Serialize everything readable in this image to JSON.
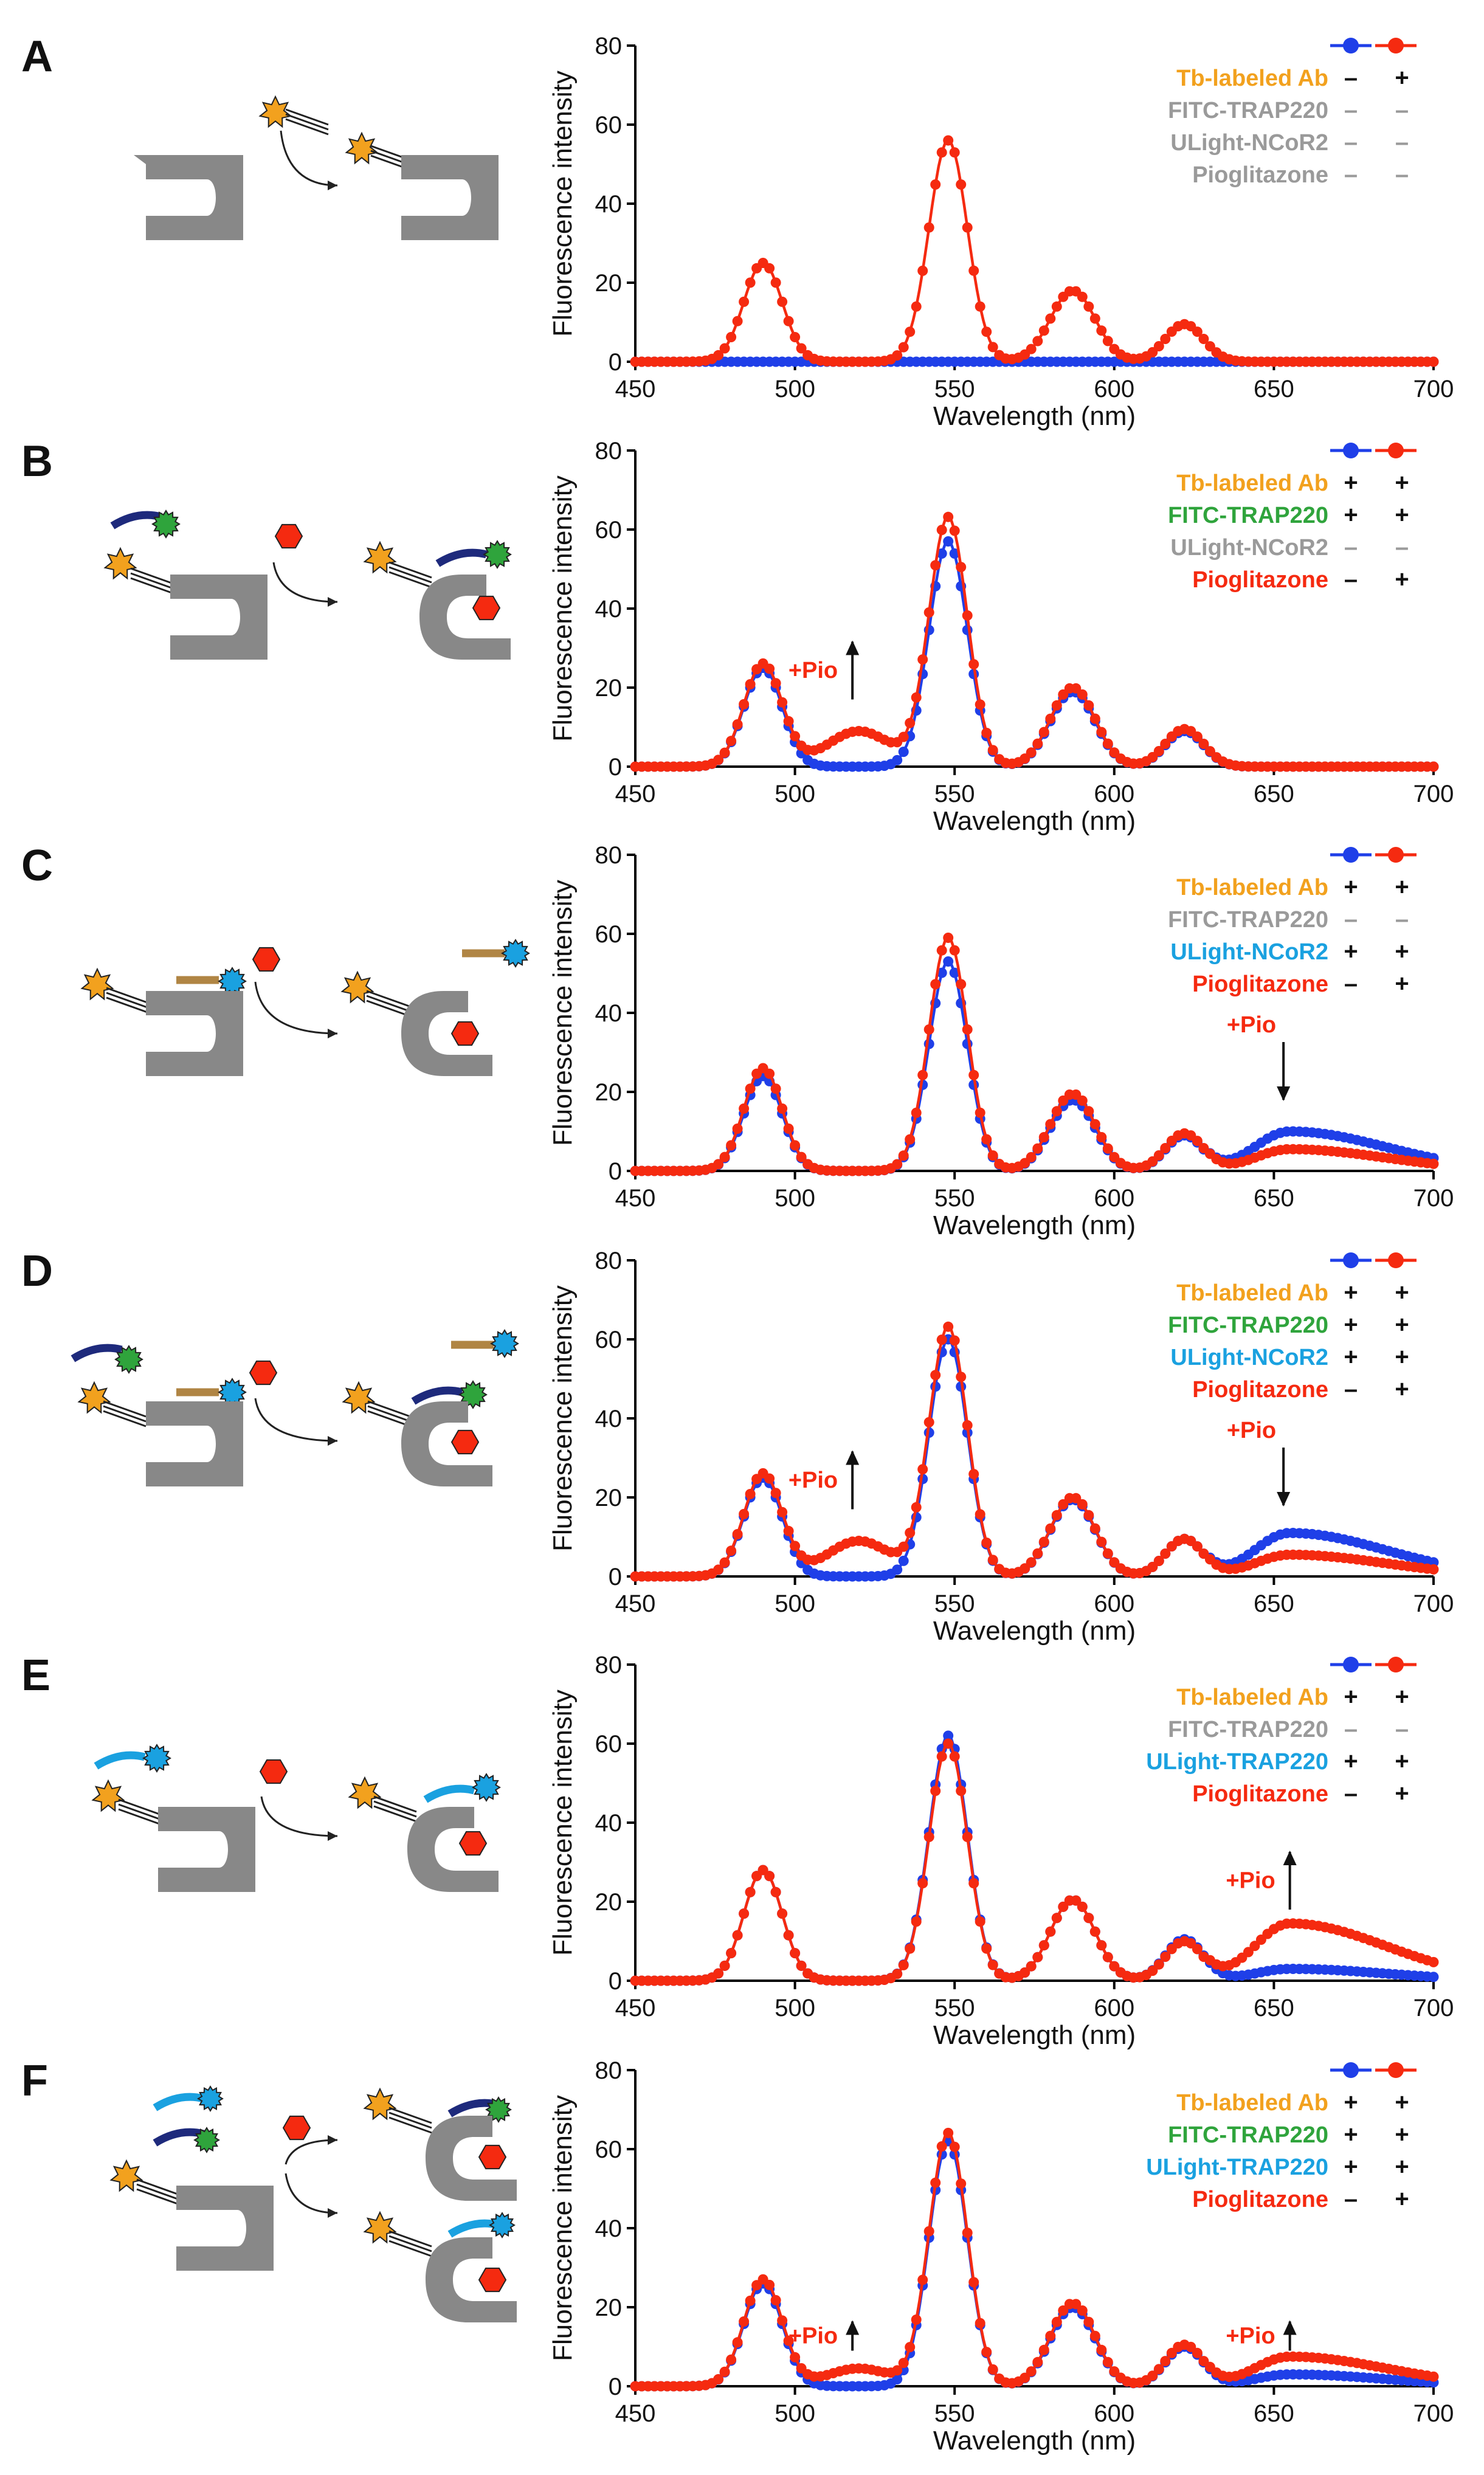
{
  "figure": {
    "xlabel": "Wavelength (nm)",
    "ylabel": "Fluorescence intensity",
    "xticks": [
      "450",
      "500",
      "550",
      "600",
      "650",
      "700"
    ],
    "yticks": [
      "0",
      "20",
      "40",
      "60",
      "80"
    ],
    "row_labels": [
      "Tb-labeled Ab",
      "FITC-TRAP220",
      "ULight-NCoR2",
      "Pioglitazone"
    ],
    "colors": {
      "blue": "#1f3fe8",
      "red": "#f52a10",
      "orange": "#f2a11e",
      "green": "#2fa43c",
      "cyan": "#1aa1e0",
      "gray": "#9a9a9a",
      "receptor": "#888888",
      "navy": "#1e2a7c",
      "tan": "#b08544"
    }
  },
  "chart_data": [
    {
      "panel": "A",
      "type": "line",
      "title": "",
      "xlabel": "Wavelength (nm)",
      "ylabel": "Fluorescence intensity",
      "xlim": [
        450,
        700
      ],
      "ylim": [
        0,
        80
      ],
      "legend": [
        {
          "label": "Tb-labeled Ab",
          "color": "orange",
          "blue": "–",
          "red": "+"
        },
        {
          "label": "FITC-TRAP220",
          "color": "gray",
          "blue": "–",
          "red": "–"
        },
        {
          "label": "ULight-NCoR2",
          "color": "gray",
          "blue": "–",
          "red": "–"
        },
        {
          "label": "Pioglitazone",
          "color": "gray",
          "blue": "–",
          "red": "–"
        }
      ],
      "annotations": [],
      "series": [
        {
          "name": "blue",
          "peaks": [
            [
              490,
              0
            ],
            [
              548,
              0
            ],
            [
              587,
              0
            ],
            [
              622,
              0
            ]
          ],
          "long_tail": 0
        },
        {
          "name": "red",
          "peaks": [
            [
              490,
              25
            ],
            [
              548,
              56
            ],
            [
              587,
              18
            ],
            [
              622,
              9.5
            ]
          ],
          "long_tail": 0
        }
      ]
    },
    {
      "panel": "B",
      "type": "line",
      "title": "",
      "xlabel": "Wavelength (nm)",
      "ylabel": "Fluorescence intensity",
      "xlim": [
        450,
        700
      ],
      "ylim": [
        0,
        80
      ],
      "legend": [
        {
          "label": "Tb-labeled Ab",
          "color": "orange",
          "blue": "+",
          "red": "+"
        },
        {
          "label": "FITC-TRAP220",
          "color": "green",
          "blue": "+",
          "red": "+"
        },
        {
          "label": "ULight-NCoR2",
          "color": "gray",
          "blue": "–",
          "red": "–"
        },
        {
          "label": "Pioglitazone",
          "color": "red",
          "blue": "–",
          "red": "+"
        }
      ],
      "annotations": [
        {
          "text": "+Pio",
          "x": 518,
          "y": 17,
          "dir": "up"
        }
      ],
      "series": [
        {
          "name": "blue",
          "peaks": [
            [
              490,
              25
            ],
            [
              548,
              57
            ],
            [
              587,
              19
            ],
            [
              622,
              9
            ]
          ],
          "long_tail": 0
        },
        {
          "name": "red",
          "peaks": [
            [
              490,
              26
            ],
            [
              548,
              63
            ],
            [
              587,
              20
            ],
            [
              622,
              9.5
            ],
            [
              520,
              9
            ]
          ],
          "long_tail": 0
        }
      ]
    },
    {
      "panel": "C",
      "type": "line",
      "title": "",
      "xlabel": "Wavelength (nm)",
      "ylabel": "Fluorescence intensity",
      "xlim": [
        450,
        700
      ],
      "ylim": [
        0,
        80
      ],
      "legend": [
        {
          "label": "Tb-labeled Ab",
          "color": "orange",
          "blue": "+",
          "red": "+"
        },
        {
          "label": "FITC-TRAP220",
          "color": "gray",
          "blue": "–",
          "red": "–"
        },
        {
          "label": "ULight-NCoR2",
          "color": "cyan",
          "blue": "+",
          "red": "+"
        },
        {
          "label": "Pioglitazone",
          "color": "red",
          "blue": "–",
          "red": "+"
        }
      ],
      "annotations": [
        {
          "text": "+Pio",
          "x": 653,
          "y": 18,
          "dir": "down"
        }
      ],
      "series": [
        {
          "name": "blue",
          "peaks": [
            [
              490,
              24
            ],
            [
              548,
              53
            ],
            [
              587,
              18
            ],
            [
              622,
              9
            ]
          ],
          "long_tail": 10
        },
        {
          "name": "red",
          "peaks": [
            [
              490,
              26
            ],
            [
              548,
              59
            ],
            [
              587,
              19.5
            ],
            [
              622,
              9.5
            ]
          ],
          "long_tail": 5.5
        }
      ]
    },
    {
      "panel": "D",
      "type": "line",
      "title": "",
      "xlabel": "Wavelength (nm)",
      "ylabel": "Fluorescence intensity",
      "xlim": [
        450,
        700
      ],
      "ylim": [
        0,
        80
      ],
      "legend": [
        {
          "label": "Tb-labeled Ab",
          "color": "orange",
          "blue": "+",
          "red": "+"
        },
        {
          "label": "FITC-TRAP220",
          "color": "green",
          "blue": "+",
          "red": "+"
        },
        {
          "label": "ULight-NCoR2",
          "color": "cyan",
          "blue": "+",
          "red": "+"
        },
        {
          "label": "Pioglitazone",
          "color": "red",
          "blue": "–",
          "red": "+"
        }
      ],
      "annotations": [
        {
          "text": "+Pio",
          "x": 518,
          "y": 17,
          "dir": "up"
        },
        {
          "text": "+Pio",
          "x": 653,
          "y": 18,
          "dir": "down"
        }
      ],
      "series": [
        {
          "name": "blue",
          "peaks": [
            [
              490,
              25
            ],
            [
              548,
              60
            ],
            [
              587,
              19.5
            ],
            [
              622,
              9.5
            ]
          ],
          "long_tail": 11
        },
        {
          "name": "red",
          "peaks": [
            [
              490,
              26
            ],
            [
              548,
              63
            ],
            [
              587,
              20
            ],
            [
              622,
              9.5
            ],
            [
              520,
              9
            ]
          ],
          "long_tail": 5.5
        }
      ]
    },
    {
      "panel": "E",
      "type": "line",
      "title": "",
      "xlabel": "Wavelength (nm)",
      "ylabel": "Fluorescence intensity",
      "xlim": [
        450,
        700
      ],
      "ylim": [
        0,
        80
      ],
      "legend": [
        {
          "label": "Tb-labeled Ab",
          "color": "orange",
          "blue": "+",
          "red": "+"
        },
        {
          "label": "FITC-TRAP220",
          "color": "gray",
          "blue": "–",
          "red": "–"
        },
        {
          "label": "ULight-TRAP220",
          "color": "cyan",
          "blue": "+",
          "red": "+"
        },
        {
          "label": "Pioglitazone",
          "color": "red",
          "blue": "–",
          "red": "+"
        }
      ],
      "annotations": [
        {
          "text": "+Pio",
          "x": 655,
          "y": 18,
          "dir": "up"
        }
      ],
      "series": [
        {
          "name": "blue",
          "peaks": [
            [
              490,
              28
            ],
            [
              548,
              62
            ],
            [
              587,
              20.5
            ],
            [
              622,
              10.5
            ]
          ],
          "long_tail": 3
        },
        {
          "name": "red",
          "peaks": [
            [
              490,
              28
            ],
            [
              548,
              60
            ],
            [
              587,
              20.5
            ],
            [
              622,
              10
            ]
          ],
          "long_tail": 14.5
        }
      ]
    },
    {
      "panel": "F",
      "type": "line",
      "title": "",
      "xlabel": "Wavelength (nm)",
      "ylabel": "Fluorescence intensity",
      "xlim": [
        450,
        700
      ],
      "ylim": [
        0,
        80
      ],
      "legend": [
        {
          "label": "Tb-labeled Ab",
          "color": "orange",
          "blue": "+",
          "red": "+"
        },
        {
          "label": "FITC-TRAP220",
          "color": "green",
          "blue": "+",
          "red": "+"
        },
        {
          "label": "ULight-TRAP220",
          "color": "cyan",
          "blue": "+",
          "red": "+"
        },
        {
          "label": "Pioglitazone",
          "color": "red",
          "blue": "–",
          "red": "+"
        }
      ],
      "annotations": [
        {
          "text": "+Pio",
          "x": 518,
          "y": 9,
          "dir": "up"
        },
        {
          "text": "+Pio",
          "x": 655,
          "y": 9,
          "dir": "up"
        }
      ],
      "series": [
        {
          "name": "blue",
          "peaks": [
            [
              490,
              26
            ],
            [
              548,
              62
            ],
            [
              587,
              20
            ],
            [
              622,
              10
            ]
          ],
          "long_tail": 3
        },
        {
          "name": "red",
          "peaks": [
            [
              490,
              27
            ],
            [
              548,
              64
            ],
            [
              587,
              21
            ],
            [
              622,
              10.5
            ],
            [
              520,
              4.5
            ]
          ],
          "long_tail": 7.5
        }
      ]
    }
  ]
}
